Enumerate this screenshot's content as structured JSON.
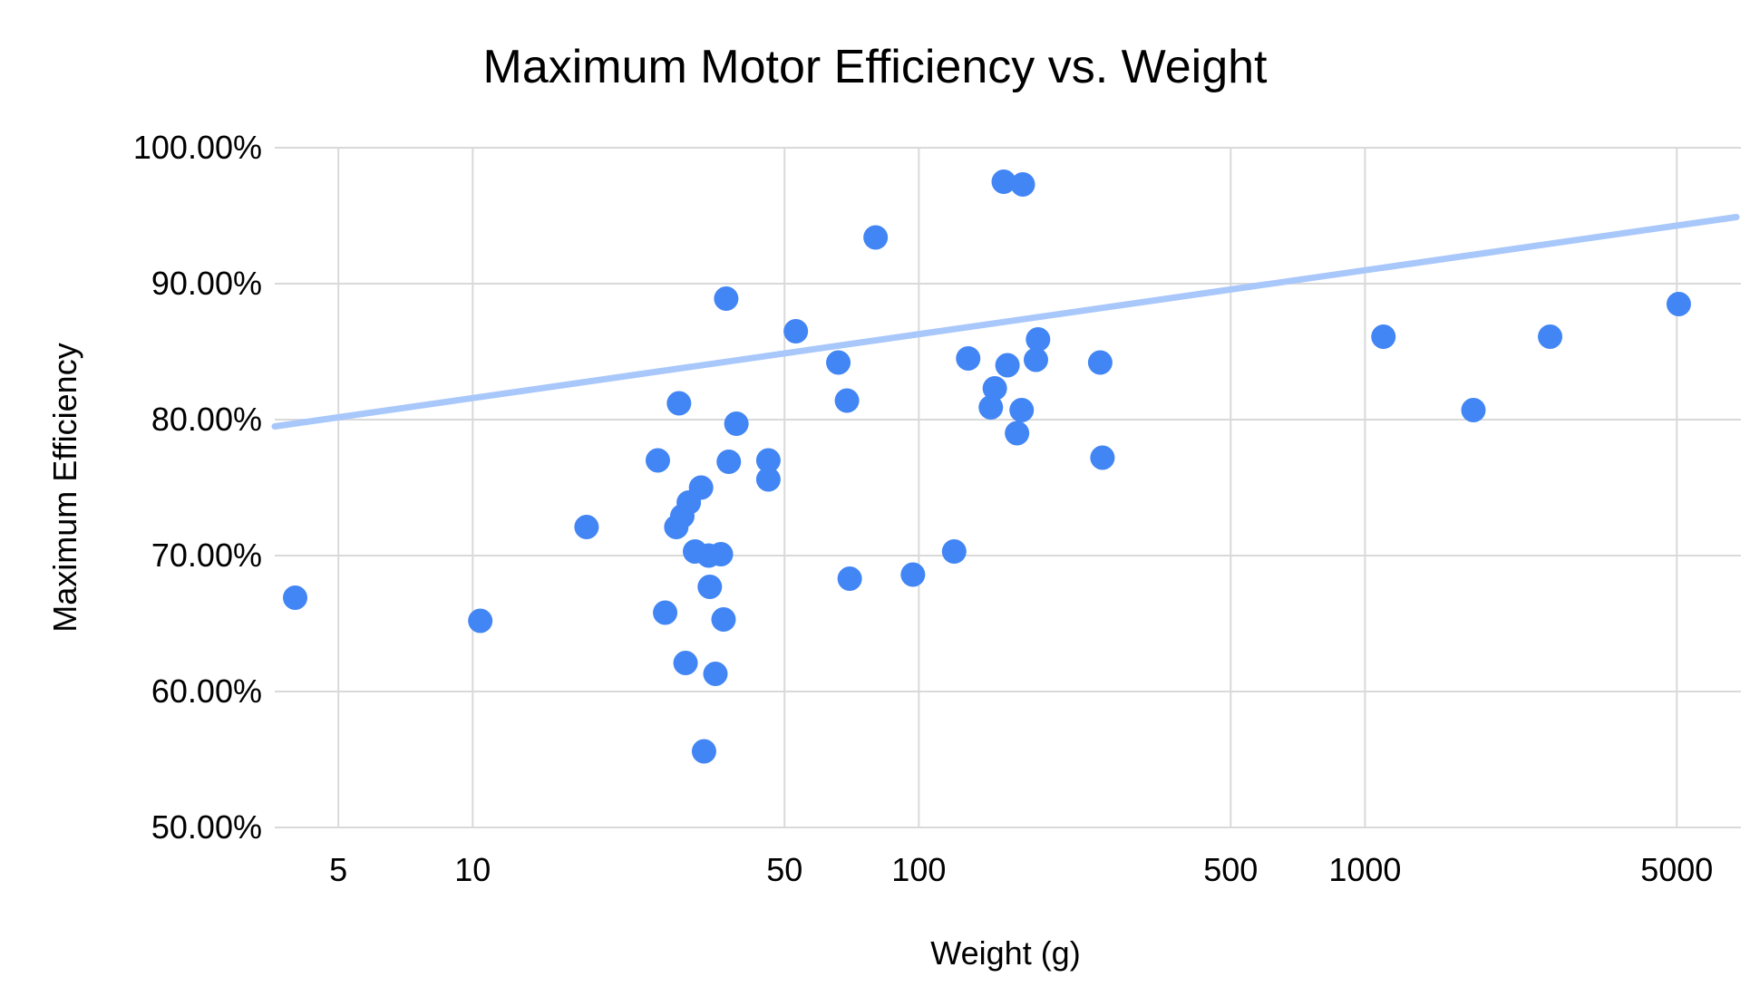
{
  "chart": {
    "title": "Maximum Motor Efficiency vs. Weight",
    "x_axis_title": "Weight (g)",
    "y_axis_title": "Maximum Efficiency"
  },
  "chart_data": {
    "type": "scatter",
    "title": "Maximum Motor Efficiency vs. Weight",
    "xlabel": "Weight (g)",
    "ylabel": "Maximum Efficiency",
    "x_scale": "log",
    "grid": true,
    "legend_position": "none",
    "xlim": [
      3.6,
      6800
    ],
    "ylim": [
      50,
      100
    ],
    "x_tick_values": [
      5,
      10,
      50,
      100,
      500,
      1000,
      5000
    ],
    "x_tick_labels": [
      "5",
      "10",
      "50",
      "100",
      "500",
      "1000",
      "5000"
    ],
    "y_tick_values": [
      50,
      60,
      70,
      80,
      90,
      100
    ],
    "y_tick_labels": [
      "50.00%",
      "60.00%",
      "70.00%",
      "80.00%",
      "90.00%",
      "100.00%"
    ],
    "points_weight_g_vs_max_efficiency_pct": [
      [
        4,
        66.9
      ],
      [
        10.4,
        65.2
      ],
      [
        18,
        72.1
      ],
      [
        26,
        77.0
      ],
      [
        27,
        65.8
      ],
      [
        28.6,
        72.1
      ],
      [
        29,
        81.2
      ],
      [
        29.5,
        72.9
      ],
      [
        30,
        62.1
      ],
      [
        30.5,
        73.9
      ],
      [
        31.5,
        70.3
      ],
      [
        32.5,
        75.0
      ],
      [
        33,
        55.6
      ],
      [
        33.8,
        70.0
      ],
      [
        34,
        67.7
      ],
      [
        35,
        61.3
      ],
      [
        36,
        70.1
      ],
      [
        36.5,
        65.3
      ],
      [
        37,
        88.9
      ],
      [
        37.5,
        76.9
      ],
      [
        39,
        79.7
      ],
      [
        46,
        77.0
      ],
      [
        46,
        75.6
      ],
      [
        53,
        86.5
      ],
      [
        66,
        84.2
      ],
      [
        69,
        81.4
      ],
      [
        70,
        68.3
      ],
      [
        80,
        93.4
      ],
      [
        97,
        68.6
      ],
      [
        120,
        70.3
      ],
      [
        129,
        84.5
      ],
      [
        145,
        80.9
      ],
      [
        148,
        82.3
      ],
      [
        155,
        97.5
      ],
      [
        158,
        84.0
      ],
      [
        166,
        79.0
      ],
      [
        170,
        80.7
      ],
      [
        171,
        97.3
      ],
      [
        183,
        84.4
      ],
      [
        185,
        85.9
      ],
      [
        255,
        84.2
      ],
      [
        258,
        77.2
      ],
      [
        1100,
        86.1
      ],
      [
        1750,
        80.7
      ],
      [
        2600,
        86.1
      ],
      [
        5050,
        88.5
      ]
    ],
    "trendline": {
      "type": "linear",
      "start": {
        "weight": 3.6,
        "efficiency": 79.5
      },
      "end": {
        "weight": 6800,
        "efficiency": 94.9
      }
    },
    "colors": {
      "point": "#4285f4",
      "trendline": "#a8c7fa",
      "gridline": "#d9d9d9",
      "text": "#000000",
      "background": "#ffffff"
    }
  }
}
